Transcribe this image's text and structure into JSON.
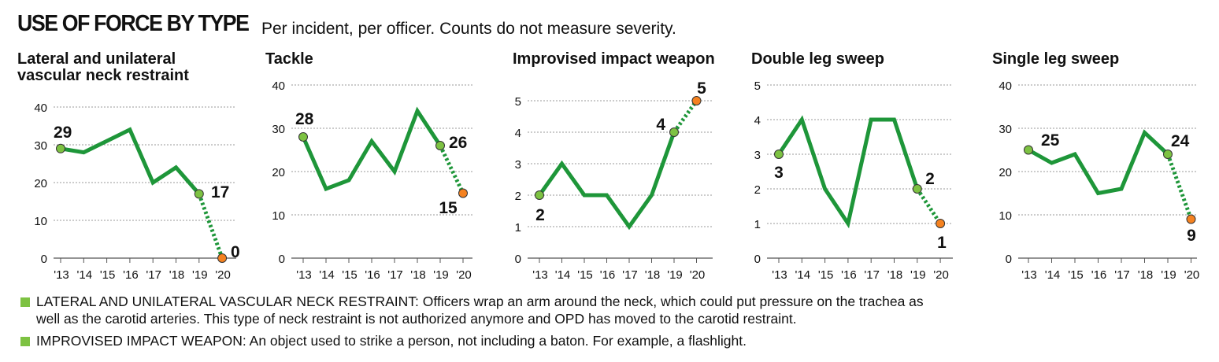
{
  "header": {
    "title": "USE OF FORCE BY TYPE",
    "subtitle": "Per incident, per officer. Counts do not measure severity."
  },
  "colors": {
    "line": "#1e9639",
    "point_green": "#7dc242",
    "point_orange": "#f58220",
    "grid": "#999999"
  },
  "chart_data": [
    {
      "type": "line",
      "title": "Lateral and unilateral vascular neck restraint",
      "x": [
        "'13",
        "'14",
        "'15",
        "'16",
        "'17",
        "'18",
        "'19",
        "'20"
      ],
      "values": [
        29,
        28,
        31,
        34,
        20,
        24,
        17,
        0
      ],
      "ylim": [
        0,
        40
      ],
      "yticks": [
        0,
        10,
        20,
        30,
        40
      ],
      "labels": [
        "29",
        "17",
        "0"
      ]
    },
    {
      "type": "line",
      "title": "Tackle",
      "x": [
        "'13",
        "'14",
        "'15",
        "'16",
        "'17",
        "'18",
        "'19",
        "'20"
      ],
      "values": [
        28,
        16,
        18,
        27,
        20,
        34,
        26,
        15
      ],
      "ylim": [
        0,
        40
      ],
      "yticks": [
        0,
        10,
        20,
        30,
        40
      ],
      "labels": [
        "28",
        "26",
        "15"
      ]
    },
    {
      "type": "line",
      "title": "Improvised impact weapon",
      "x": [
        "'13",
        "'14",
        "'15",
        "'16",
        "'17",
        "'18",
        "'19",
        "'20"
      ],
      "values": [
        2,
        3,
        2,
        2,
        1,
        2,
        4,
        5
      ],
      "ylim": [
        0,
        5
      ],
      "yticks": [
        0,
        1,
        2,
        3,
        4,
        5
      ],
      "labels": [
        "2",
        "4",
        "5"
      ]
    },
    {
      "type": "line",
      "title": "Double leg sweep",
      "x": [
        "'13",
        "'14",
        "'15",
        "'16",
        "'17",
        "'18",
        "'19",
        "'20"
      ],
      "values": [
        3,
        4,
        2,
        1,
        4,
        4,
        2,
        1
      ],
      "ylim": [
        0,
        5
      ],
      "yticks": [
        0,
        1,
        2,
        3,
        4,
        5
      ],
      "labels": [
        "3",
        "2",
        "1"
      ]
    },
    {
      "type": "line",
      "title": "Single leg sweep",
      "x": [
        "'13",
        "'14",
        "'15",
        "'16",
        "'17",
        "'18",
        "'19",
        "'20"
      ],
      "values": [
        25,
        22,
        24,
        15,
        16,
        29,
        24,
        9
      ],
      "ylim": [
        0,
        40
      ],
      "yticks": [
        0,
        10,
        20,
        30,
        40
      ],
      "labels": [
        "25",
        "24",
        "9"
      ]
    }
  ],
  "legend": [
    {
      "key": "LATERAL AND UNILATERAL VASCULAR NECK RESTRAINT:",
      "line1": "Officers wrap an arm around the neck, which could put pressure on the trachea as",
      "line2": "well as the carotid arteries. This type of neck restraint is not authorized anymore and OPD has moved to the carotid restraint."
    },
    {
      "key": "IMPROVISED IMPACT WEAPON:",
      "line1": "An object used to strike a person, not including a baton. For example, a flashlight."
    }
  ]
}
